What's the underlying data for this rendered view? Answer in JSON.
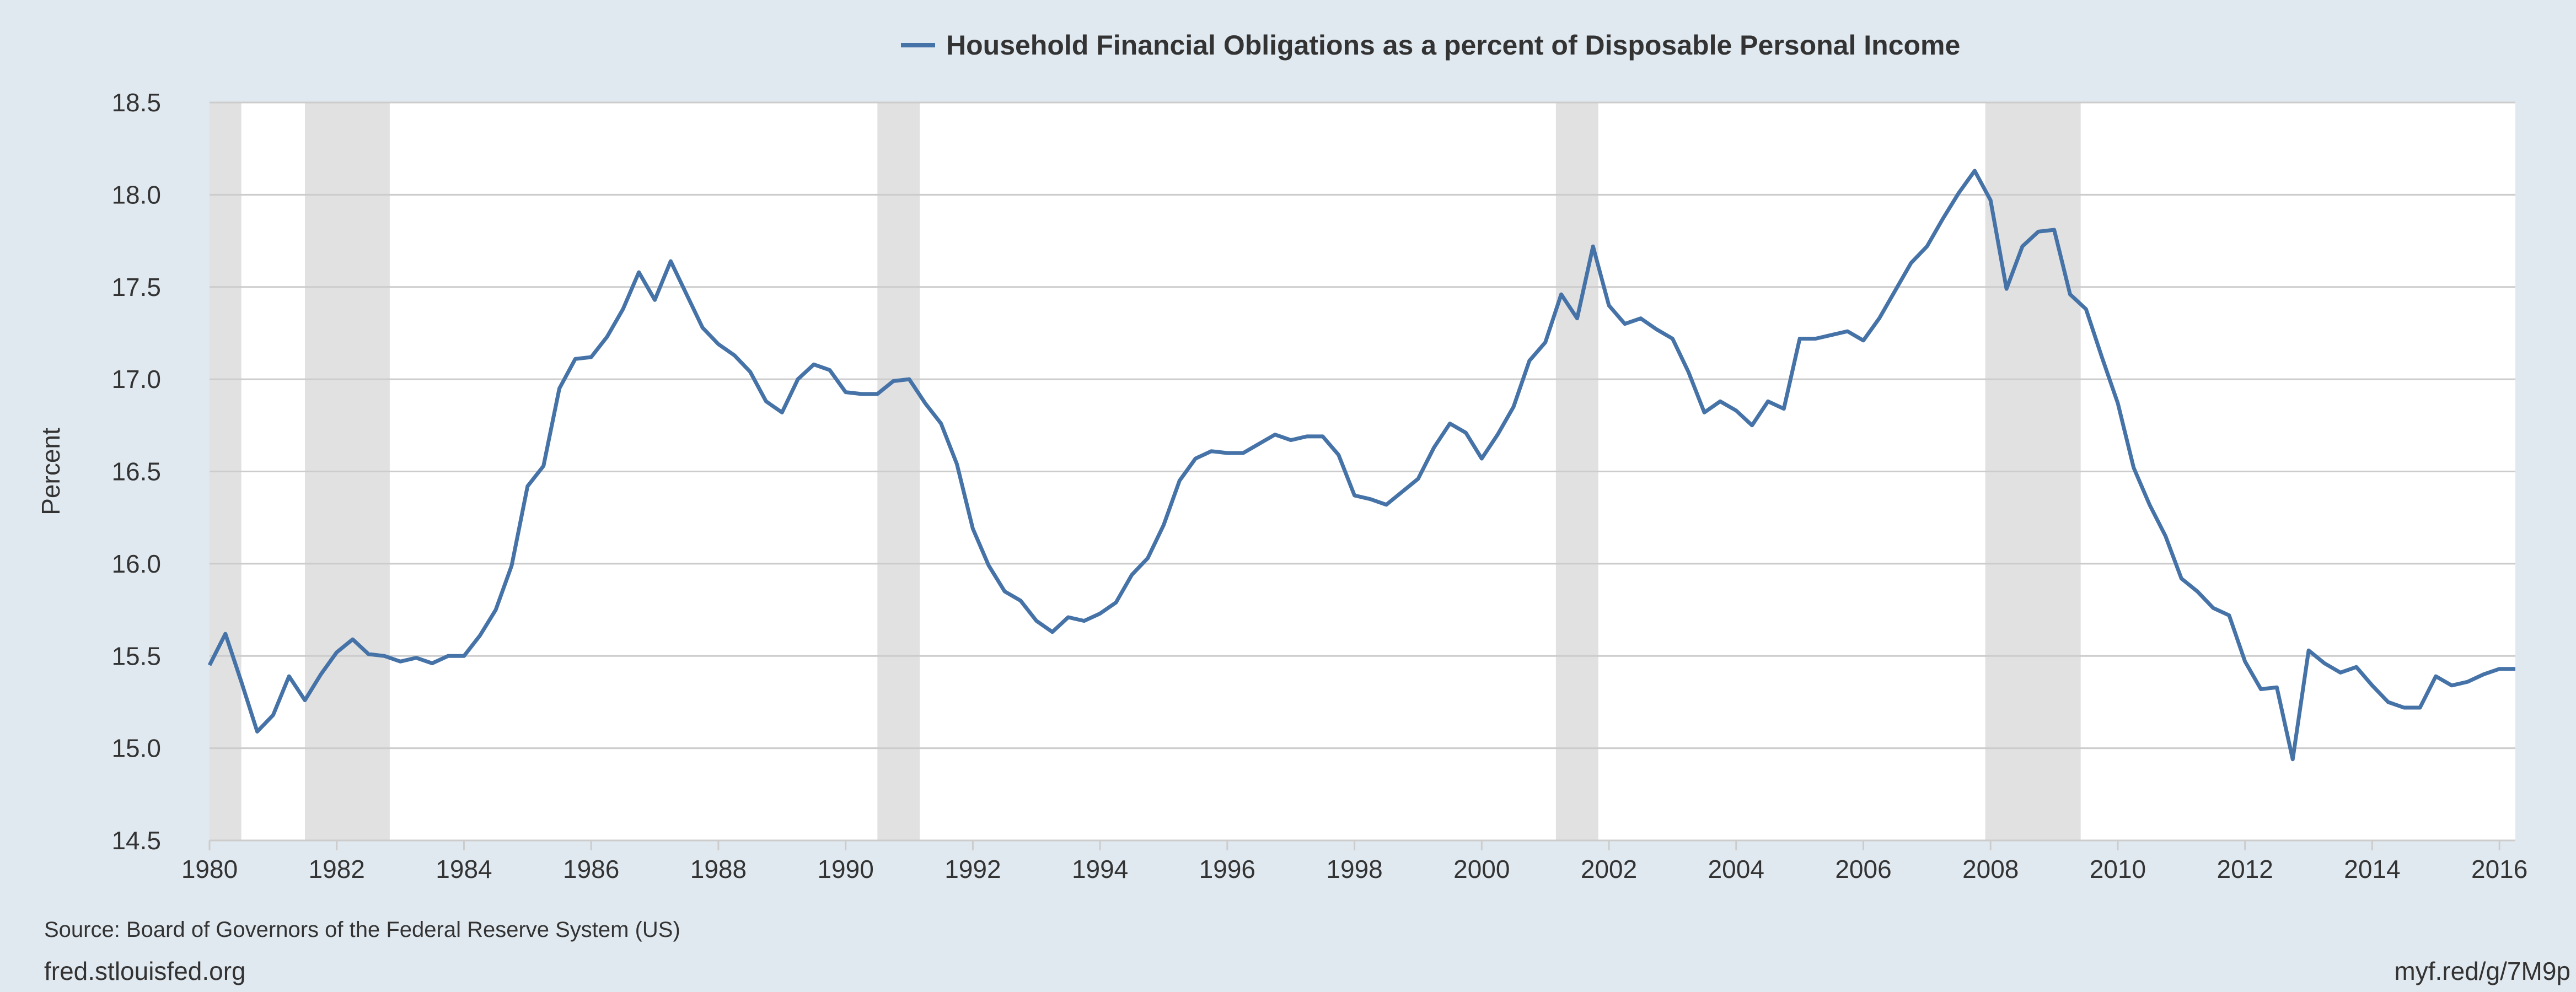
{
  "chart_data": {
    "type": "line",
    "title": "",
    "xlabel": "",
    "ylabel": "Percent",
    "ylim": [
      14.5,
      18.5
    ],
    "xlim": [
      "1980-01-01",
      "2016-04-01"
    ],
    "yticks": [
      "14.5",
      "15.0",
      "15.5",
      "16.0",
      "16.5",
      "17.0",
      "17.5",
      "18.0",
      "18.5"
    ],
    "xticks": [
      "1980",
      "1982",
      "1984",
      "1986",
      "1988",
      "1990",
      "1992",
      "1994",
      "1996",
      "1998",
      "2000",
      "2002",
      "2004",
      "2006",
      "2008",
      "2010",
      "2012",
      "2014",
      "2016"
    ],
    "grid": true,
    "legend_position": "top-center",
    "colors": {
      "line": "#4572a7",
      "recession": "#e1e1e1",
      "plot_bg": "#ffffff",
      "grid": "#cccccc",
      "page_bg": "#e1e9f0"
    },
    "recessions": [
      [
        "1980-01-01",
        "1980-07-01"
      ],
      [
        "1981-07-01",
        "1982-11-01"
      ],
      [
        "1990-07-01",
        "1991-03-01"
      ],
      [
        "2001-03-01",
        "2001-11-01"
      ],
      [
        "2007-12-01",
        "2009-06-01"
      ]
    ],
    "series": [
      {
        "name": "Household Financial Obligations as a percent of Disposable Personal Income",
        "x": [
          "1980-01-01",
          "1980-04-01",
          "1980-07-01",
          "1980-10-01",
          "1981-01-01",
          "1981-04-01",
          "1981-07-01",
          "1981-10-01",
          "1982-01-01",
          "1982-04-01",
          "1982-07-01",
          "1982-10-01",
          "1983-01-01",
          "1983-04-01",
          "1983-07-01",
          "1983-10-01",
          "1984-01-01",
          "1984-04-01",
          "1984-07-01",
          "1984-10-01",
          "1985-01-01",
          "1985-04-01",
          "1985-07-01",
          "1985-10-01",
          "1986-01-01",
          "1986-04-01",
          "1986-07-01",
          "1986-10-01",
          "1987-01-01",
          "1987-04-01",
          "1987-07-01",
          "1987-10-01",
          "1988-01-01",
          "1988-04-01",
          "1988-07-01",
          "1988-10-01",
          "1989-01-01",
          "1989-04-01",
          "1989-07-01",
          "1989-10-01",
          "1990-01-01",
          "1990-04-01",
          "1990-07-01",
          "1990-10-01",
          "1991-01-01",
          "1991-04-01",
          "1991-07-01",
          "1991-10-01",
          "1992-01-01",
          "1992-04-01",
          "1992-07-01",
          "1992-10-01",
          "1993-01-01",
          "1993-04-01",
          "1993-07-01",
          "1993-10-01",
          "1994-01-01",
          "1994-04-01",
          "1994-07-01",
          "1994-10-01",
          "1995-01-01",
          "1995-04-01",
          "1995-07-01",
          "1995-10-01",
          "1996-01-01",
          "1996-04-01",
          "1996-07-01",
          "1996-10-01",
          "1997-01-01",
          "1997-04-01",
          "1997-07-01",
          "1997-10-01",
          "1998-01-01",
          "1998-04-01",
          "1998-07-01",
          "1998-10-01",
          "1999-01-01",
          "1999-04-01",
          "1999-07-01",
          "1999-10-01",
          "2000-01-01",
          "2000-04-01",
          "2000-07-01",
          "2000-10-01",
          "2001-01-01",
          "2001-04-01",
          "2001-07-01",
          "2001-10-01",
          "2002-01-01",
          "2002-04-01",
          "2002-07-01",
          "2002-10-01",
          "2003-01-01",
          "2003-04-01",
          "2003-07-01",
          "2003-10-01",
          "2004-01-01",
          "2004-04-01",
          "2004-07-01",
          "2004-10-01",
          "2005-01-01",
          "2005-04-01",
          "2005-07-01",
          "2005-10-01",
          "2006-01-01",
          "2006-04-01",
          "2006-07-01",
          "2006-10-01",
          "2007-01-01",
          "2007-04-01",
          "2007-07-01",
          "2007-10-01",
          "2008-01-01",
          "2008-04-01",
          "2008-07-01",
          "2008-10-01",
          "2009-01-01",
          "2009-04-01",
          "2009-07-01",
          "2009-10-01",
          "2010-01-01",
          "2010-04-01",
          "2010-07-01",
          "2010-10-01",
          "2011-01-01",
          "2011-04-01",
          "2011-07-01",
          "2011-10-01",
          "2012-01-01",
          "2012-04-01",
          "2012-07-01",
          "2012-10-01",
          "2013-01-01",
          "2013-04-01",
          "2013-07-01",
          "2013-10-01",
          "2014-01-01",
          "2014-04-01",
          "2014-07-01",
          "2014-10-01",
          "2015-01-01",
          "2015-04-01",
          "2015-07-01",
          "2015-10-01",
          "2016-01-01",
          "2016-04-01"
        ],
        "values": [
          15.45,
          15.62,
          15.36,
          15.09,
          15.18,
          15.39,
          15.26,
          15.4,
          15.52,
          15.59,
          15.51,
          15.5,
          15.47,
          15.49,
          15.46,
          15.5,
          15.5,
          15.61,
          15.75,
          15.99,
          16.42,
          16.53,
          16.95,
          17.11,
          17.12,
          17.23,
          17.38,
          17.58,
          17.43,
          17.64,
          17.46,
          17.28,
          17.19,
          17.13,
          17.04,
          16.88,
          16.82,
          17.0,
          17.08,
          17.05,
          16.93,
          16.92,
          16.92,
          16.99,
          17.0,
          16.87,
          16.76,
          16.54,
          16.19,
          15.99,
          15.85,
          15.8,
          15.69,
          15.63,
          15.71,
          15.69,
          15.73,
          15.79,
          15.94,
          16.03,
          16.21,
          16.45,
          16.57,
          16.61,
          16.6,
          16.6,
          16.65,
          16.7,
          16.67,
          16.69,
          16.69,
          16.59,
          16.37,
          16.35,
          16.32,
          16.39,
          16.46,
          16.63,
          16.76,
          16.71,
          16.57,
          16.7,
          16.85,
          17.1,
          17.2,
          17.46,
          17.33,
          17.72,
          17.4,
          17.3,
          17.33,
          17.27,
          17.22,
          17.04,
          16.82,
          16.88,
          16.83,
          16.75,
          16.88,
          16.84,
          17.22,
          17.22,
          17.24,
          17.26,
          17.21,
          17.33,
          17.48,
          17.63,
          17.72,
          17.87,
          18.01,
          18.13,
          17.97,
          17.49,
          17.72,
          17.8,
          17.81,
          17.46,
          17.38,
          17.12,
          16.87,
          16.52,
          16.32,
          16.15,
          15.92,
          15.85,
          15.76,
          15.72,
          15.47,
          15.32,
          15.33,
          14.94,
          15.53,
          15.46,
          15.41,
          15.44,
          15.34,
          15.25,
          15.22,
          15.22,
          15.39,
          15.34,
          15.36,
          15.4,
          15.43,
          15.43
        ]
      }
    ]
  },
  "footer": {
    "source": "Source: Board of Governors of the Federal Reserve System (US)",
    "site": "fred.stlouisfed.org",
    "shorturl": "myf.red/g/7M9p"
  }
}
